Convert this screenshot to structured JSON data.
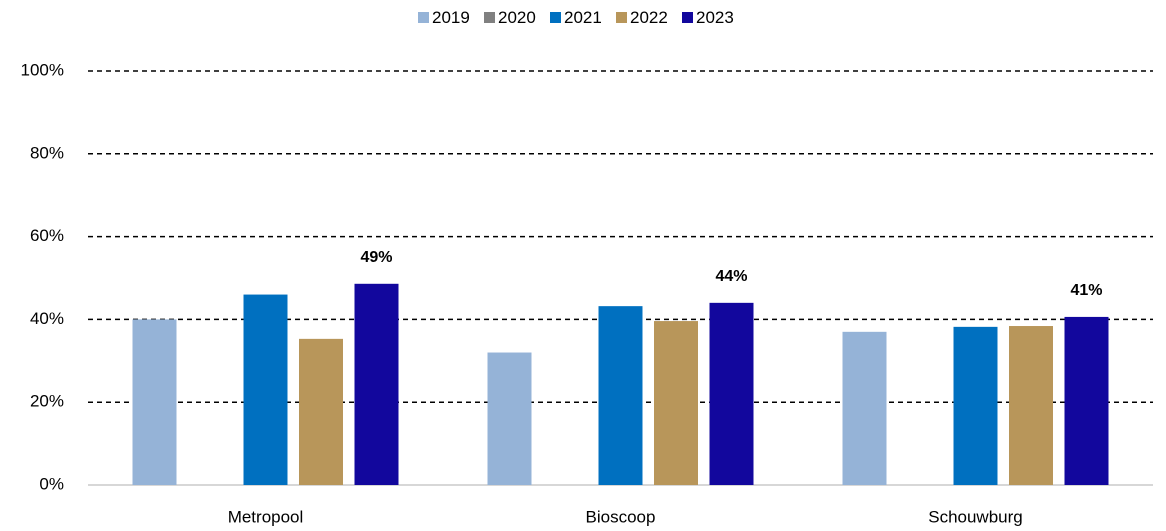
{
  "chart_data": {
    "type": "bar",
    "categories": [
      "Metropool",
      "Bioscoop",
      "Schouwburg"
    ],
    "series": [
      {
        "name": "2019",
        "color": "#95b3d7",
        "values": [
          40,
          32,
          37
        ]
      },
      {
        "name": "2020",
        "color": "#808080",
        "values": [
          null,
          null,
          null
        ]
      },
      {
        "name": "2021",
        "color": "#0070c0",
        "values": [
          46,
          43.2,
          38.2
        ]
      },
      {
        "name": "2022",
        "color": "#b8965a",
        "values": [
          35.3,
          39.6,
          38.4
        ]
      },
      {
        "name": "2023",
        "color": "#12079d",
        "values": [
          48.6,
          44,
          40.6
        ],
        "value_labels": [
          "49%",
          "44%",
          "41%"
        ]
      }
    ],
    "ylim": [
      0,
      100
    ],
    "yticks": [
      {
        "value": 0,
        "label": "0%"
      },
      {
        "value": 20,
        "label": "20%"
      },
      {
        "value": 40,
        "label": "40%"
      },
      {
        "value": 60,
        "label": "60%"
      },
      {
        "value": 80,
        "label": "80%"
      },
      {
        "value": 100,
        "label": "100%"
      }
    ],
    "grid": true,
    "legend": "top"
  }
}
